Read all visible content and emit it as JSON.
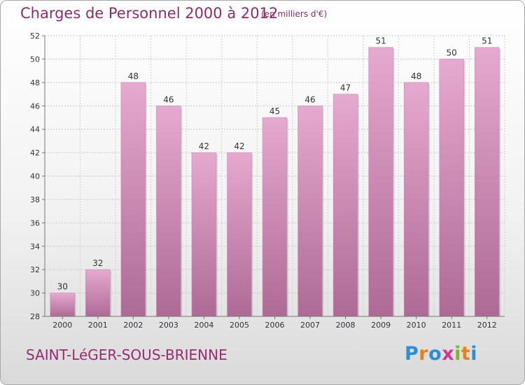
{
  "chart_data": {
    "type": "bar",
    "title": "Charges de Personnel 2000 à 2012",
    "subtitle": "(en milliers d'€)",
    "categories": [
      "2000",
      "2001",
      "2002",
      "2003",
      "2004",
      "2005",
      "2006",
      "2007",
      "2008",
      "2009",
      "2010",
      "2011",
      "2012"
    ],
    "values": [
      30,
      32,
      48,
      46,
      42,
      42,
      45,
      46,
      47,
      51,
      48,
      50,
      51
    ],
    "ylim": [
      28,
      52
    ],
    "yticks": [
      28,
      30,
      32,
      34,
      36,
      38,
      40,
      42,
      44,
      46,
      48,
      50,
      52
    ],
    "grid": true,
    "bar_color_top": "#e6a9cf",
    "bar_color_bottom": "#ad6a95"
  },
  "commune": "SAINT-LéGER-SOUS-BRIENNE",
  "logo": {
    "letters": [
      {
        "char": "P",
        "color": "#2a8fd6"
      },
      {
        "char": "r",
        "color": "#e8811a"
      },
      {
        "char": "o",
        "color": "#2a8fd6"
      },
      {
        "char": "x",
        "color": "#d6338c"
      },
      {
        "char": "i",
        "color": "#79b82a"
      },
      {
        "char": "t",
        "color": "#e8811a"
      },
      {
        "char": "i",
        "color": "#2a8fd6"
      }
    ]
  }
}
